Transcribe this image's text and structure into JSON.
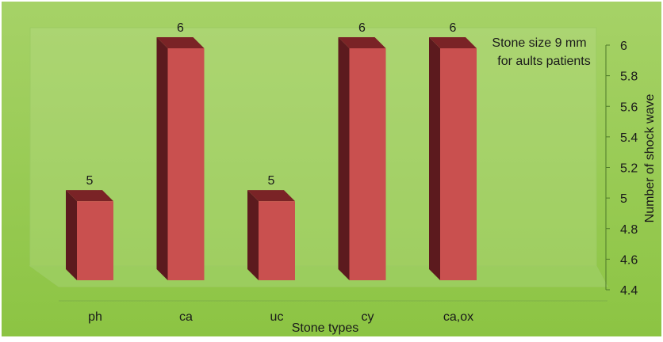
{
  "chart_data": {
    "type": "bar",
    "title": "",
    "annotation": [
      "Stone size 9 mm",
      "for  aults patients"
    ],
    "xlabel": "Stone types",
    "ylabel": "Number of shock wave",
    "categories": [
      "ph",
      "ca",
      "uc",
      "cy",
      "ca,ox"
    ],
    "values": [
      5,
      6,
      5,
      6,
      6
    ],
    "data_labels": [
      "5",
      "6",
      "5",
      "6",
      "6"
    ],
    "ylim": [
      4.4,
      6
    ],
    "yticks": [
      "4.4",
      "4.6",
      "4.8",
      "5",
      "5.2",
      "5.4",
      "5.6",
      "5.8",
      "6"
    ],
    "y_axis_side": "right",
    "legend": false,
    "colors": {
      "background": "#8cc443",
      "background_light": "#a6d267",
      "plot_wall": "#b9dd8c",
      "bar_front": "#c9504f",
      "bar_side": "#5c1a1e",
      "bar_top": "#7a2326"
    }
  }
}
